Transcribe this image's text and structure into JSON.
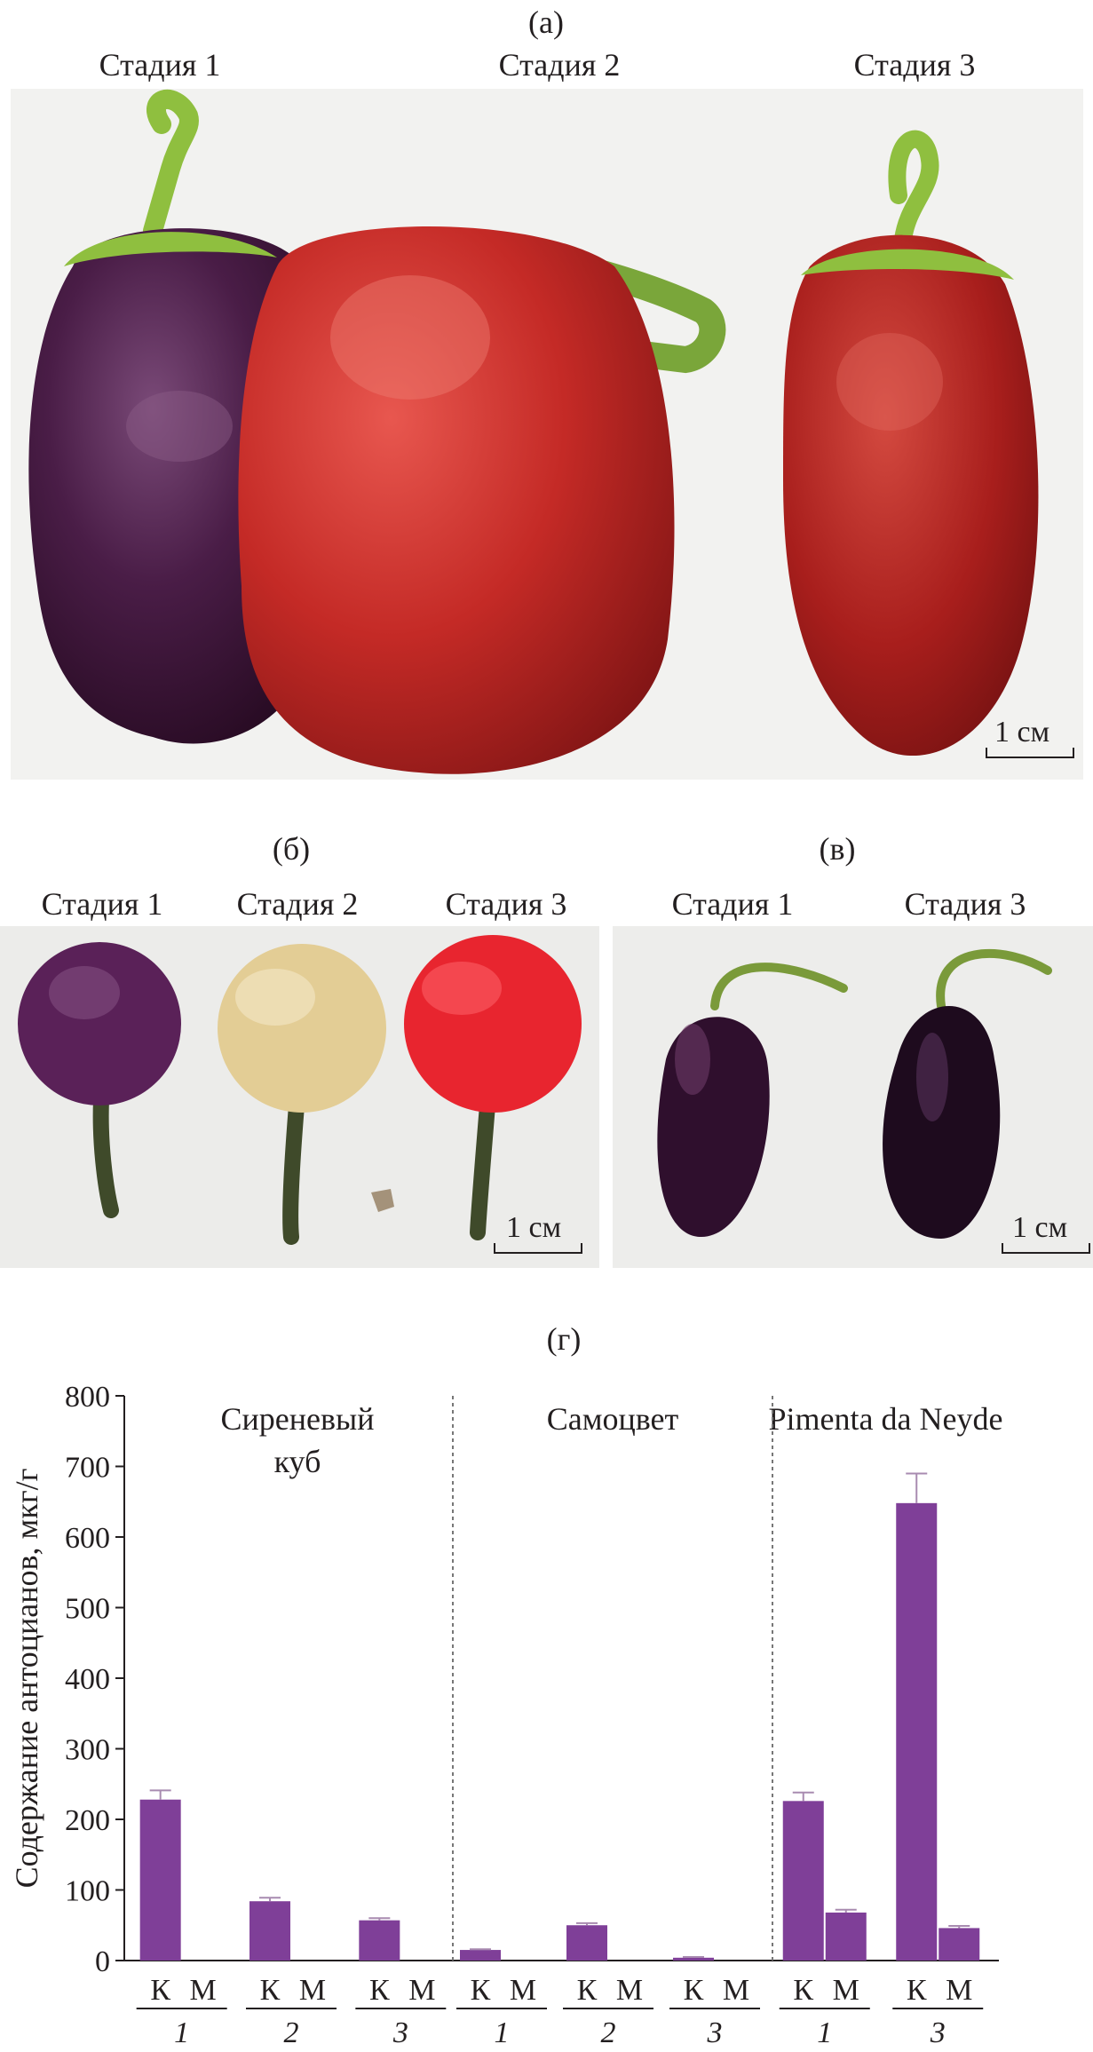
{
  "panel_a": {
    "label": "(а)",
    "stages": [
      "Стадия 1",
      "Стадия 2",
      "Стадия 3"
    ],
    "scale": "1 см"
  },
  "panel_b": {
    "label": "(б)",
    "stages": [
      "Стадия 1",
      "Стадия 2",
      "Стадия 3"
    ],
    "scale": "1 см"
  },
  "panel_v": {
    "label": "(в)",
    "stages": [
      "Стадия 1",
      "Стадия 3"
    ],
    "scale": "1 см"
  },
  "panel_g": {
    "label": "(г)"
  },
  "colors": {
    "bar": "#7f3f98",
    "purple_pepper": "#3d1538",
    "red_pepper": "#b8201f",
    "cream_pepper": "#e8d6a0",
    "bright_red_pepper": "#e8252f",
    "stem_green": "#8fbf3f",
    "dark_stem": "#3f4a2a"
  },
  "chart_data": {
    "type": "bar",
    "ylabel": "Содержание антоцианов, мкг/г",
    "ylim": [
      0,
      800
    ],
    "yticks": [
      0,
      100,
      200,
      300,
      400,
      500,
      600,
      700,
      800
    ],
    "groups": [
      {
        "name": "Сиреневый куб",
        "name_lines": [
          "Сиреневый",
          "куб"
        ],
        "stages": [
          {
            "stage": "1",
            "K": 228,
            "K_err": 13,
            "M": 0,
            "M_err": 0
          },
          {
            "stage": "2",
            "K": 84,
            "K_err": 5,
            "M": 0,
            "M_err": 0
          },
          {
            "stage": "3",
            "K": 57,
            "K_err": 3,
            "M": 0,
            "M_err": 0
          }
        ]
      },
      {
        "name": "Самоцвет",
        "name_lines": [
          "Самоцвет"
        ],
        "stages": [
          {
            "stage": "1",
            "K": 15,
            "K_err": 1,
            "M": 0,
            "M_err": 0
          },
          {
            "stage": "2",
            "K": 50,
            "K_err": 3,
            "M": 0,
            "M_err": 0
          },
          {
            "stage": "3",
            "K": 4,
            "K_err": 1,
            "M": 0,
            "M_err": 0
          }
        ]
      },
      {
        "name": "Pimenta da Neyde",
        "name_lines": [
          "Pimenta da Neyde"
        ],
        "stages": [
          {
            "stage": "1",
            "K": 226,
            "K_err": 12,
            "M": 68,
            "M_err": 4
          },
          {
            "stage": "3",
            "K": 648,
            "K_err": 42,
            "M": 46,
            "M_err": 3
          }
        ]
      }
    ],
    "bar_labels": [
      "К",
      "М"
    ]
  }
}
